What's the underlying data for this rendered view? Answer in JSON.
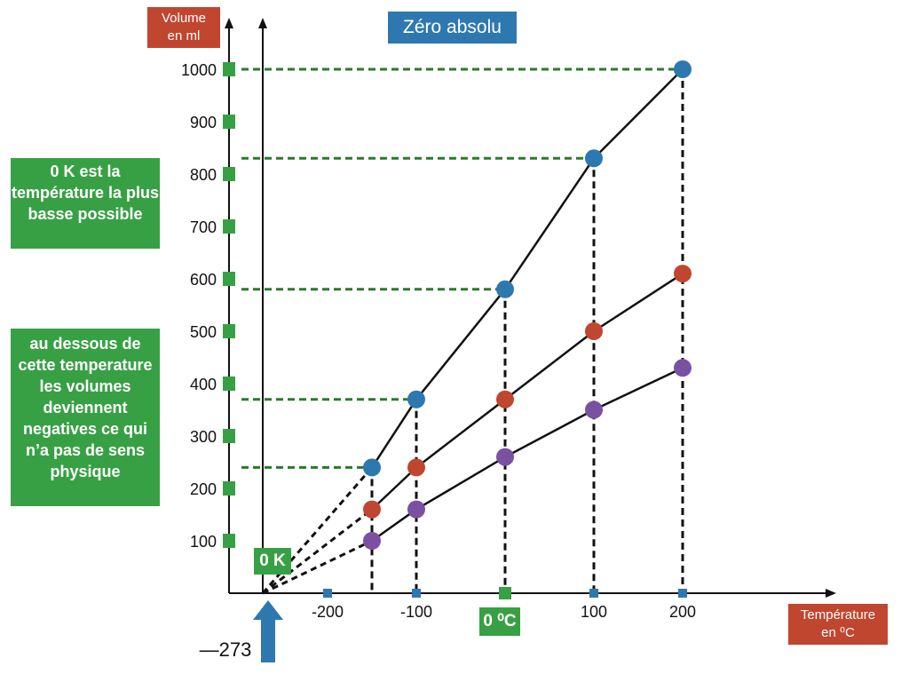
{
  "labels": {
    "volume_axis": "Volume\nen ml",
    "zero_absolute": "Zéro absolu",
    "temperature_axis": "Température\nen ⁰C",
    "note_zero_k": "0  K est la température la plus basse possible",
    "note_below": "au dessous de cette temperature les volumes deviennent negatives ce qui n’a pas de sens physique",
    "zero_k": "0 K",
    "zero_c": "0 ⁰C",
    "absolute_value": "—273"
  },
  "colors": {
    "label_red": "#c0462f",
    "label_blue": "#2e78b0",
    "label_green": "#38a044",
    "series_blue": "#2e78b0",
    "series_red": "#c0462f",
    "series_purple": "#7a50a0"
  },
  "chart_data": {
    "type": "scatter",
    "xlabel": "Température en ⁰C",
    "ylabel": "Volume en ml",
    "xlim": [
      -300,
      300
    ],
    "ylim": [
      0,
      1000
    ],
    "x_ticks": [
      {
        "value": -200,
        "label": "-200"
      },
      {
        "value": -100,
        "label": "-100"
      },
      {
        "value": 0,
        "label": "0 ⁰C"
      },
      {
        "value": 100,
        "label": "100"
      },
      {
        "value": 200,
        "label": "200"
      }
    ],
    "y_ticks": [
      100,
      200,
      300,
      400,
      500,
      600,
      700,
      800,
      900,
      1000
    ],
    "absolute_zero": -273,
    "series": [
      {
        "color": "#2e78b0",
        "x": [
          -150,
          -100,
          0,
          100,
          200
        ],
        "y": [
          240,
          370,
          580,
          830,
          1000
        ]
      },
      {
        "color": "#c0462f",
        "x": [
          -150,
          -100,
          0,
          100,
          200
        ],
        "y": [
          160,
          240,
          370,
          500,
          610
        ]
      },
      {
        "color": "#7a50a0",
        "x": [
          -150,
          -100,
          0,
          100,
          200
        ],
        "y": [
          100,
          160,
          260,
          350,
          430
        ]
      }
    ]
  }
}
